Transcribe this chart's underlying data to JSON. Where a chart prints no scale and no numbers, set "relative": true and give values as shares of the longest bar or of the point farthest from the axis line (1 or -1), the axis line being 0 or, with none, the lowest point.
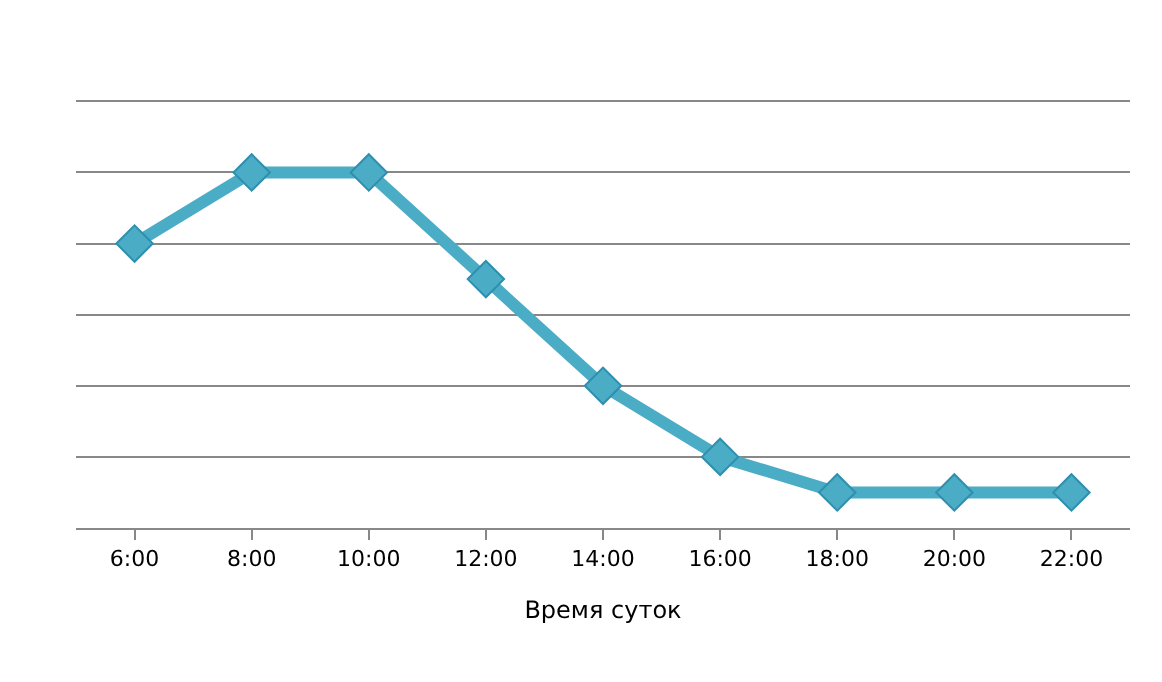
{
  "chart_data": {
    "type": "line",
    "xlabel": "Время суток",
    "categories": [
      "6:00",
      "8:00",
      "10:00",
      "12:00",
      "14:00",
      "16:00",
      "18:00",
      "20:00",
      "22:00"
    ],
    "series": [
      {
        "color": "#4bacc6",
        "values": [
          0.8,
          1,
          1,
          0.7,
          0.4,
          0.2,
          0.1,
          0.1,
          0.1
        ]
      }
    ],
    "relative": true,
    "marker": "diamond",
    "line_style": "solid",
    "grid": "y"
  }
}
